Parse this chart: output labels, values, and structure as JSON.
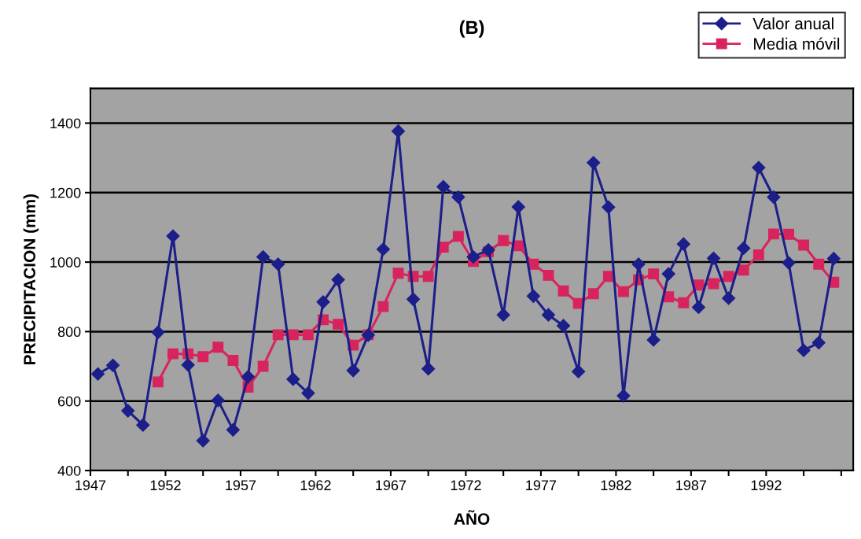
{
  "chart_data": {
    "type": "line",
    "title": "(B)",
    "xlabel": "AÑO",
    "ylabel": "PRECIPITACION (mm)",
    "x": [
      1947.5,
      1948.5,
      1949.5,
      1950.5,
      1951.5,
      1952.5,
      1953.5,
      1954.5,
      1955.5,
      1956.5,
      1957.5,
      1958.5,
      1959.5,
      1960.5,
      1961.5,
      1962.5,
      1963.5,
      1964.5,
      1965.5,
      1966.5,
      1967.5,
      1968.5,
      1969.5,
      1970.5,
      1971.5,
      1972.5,
      1973.5,
      1974.5,
      1975.5,
      1976.5,
      1977.5,
      1978.5,
      1979.5,
      1980.5,
      1981.5,
      1982.5,
      1983.5,
      1984.5,
      1985.5,
      1986.5,
      1987.5,
      1988.5,
      1989.5,
      1990.5,
      1991.5,
      1992.5,
      1993.5,
      1994.5,
      1995.5,
      1996.5
    ],
    "series": [
      {
        "name": "Valor anual",
        "color": "#1c1f8a",
        "marker": "diamond",
        "values": [
          678,
          703,
          572,
          531,
          798,
          1075,
          704,
          486,
          602,
          517,
          670,
          1015,
          994,
          663,
          623,
          885,
          949,
          688,
          790,
          1037,
          1377,
          893,
          693,
          1217,
          1187,
          1015,
          1035,
          848,
          1159,
          902,
          848,
          817,
          685,
          1286,
          1158,
          615,
          994,
          776,
          966,
          1052,
          870,
          1011,
          896,
          1040,
          1272,
          1187,
          998,
          746,
          768,
          1010
        ]
      },
      {
        "name": "Media móvil",
        "color": "#d8245c",
        "marker": "square",
        "values": [
          null,
          null,
          null,
          null,
          655,
          736,
          736,
          728,
          755,
          717,
          640,
          700,
          791,
          791,
          791,
          834,
          821,
          761,
          791,
          872,
          968,
          959,
          959,
          1043,
          1074,
          1002,
          1030,
          1062,
          1047,
          994,
          962,
          917,
          881,
          909,
          959,
          915,
          949,
          966,
          900,
          883,
          934,
          938,
          959,
          977,
          1021,
          1081,
          1080,
          1049,
          994,
          942
        ]
      }
    ],
    "xlim": [
      1947,
      1997.8
    ],
    "xticks": [
      1947,
      {
        "value": 1949.5,
        "label": null
      },
      1952,
      {
        "value": 1954.5,
        "label": null
      },
      1957,
      {
        "value": 1959.5,
        "label": null
      },
      1962,
      {
        "value": 1964.5,
        "label": null
      },
      1967,
      {
        "value": 1969.5,
        "label": null
      },
      1972,
      {
        "value": 1974.5,
        "label": null
      },
      1977,
      {
        "value": 1979.5,
        "label": null
      },
      1982,
      {
        "value": 1984.5,
        "label": null
      },
      1987,
      {
        "value": 1989.5,
        "label": null
      },
      1992,
      {
        "value": 1994.5,
        "label": null
      },
      {
        "value": 1997,
        "label": null
      }
    ],
    "ylim": [
      400,
      1500
    ],
    "yticks": [
      400,
      600,
      800,
      1000,
      1200,
      1400
    ],
    "grid": "y",
    "legend": "top right",
    "line_style": "solid"
  }
}
